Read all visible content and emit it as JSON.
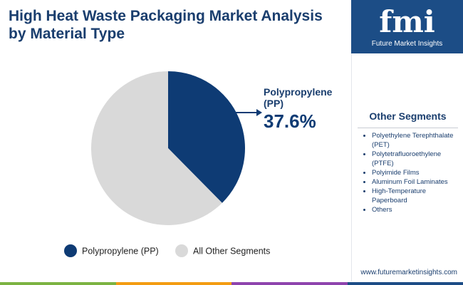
{
  "chart_data": {
    "type": "pie",
    "title": "High Heat Waste Packaging Market Analysis by Material Type",
    "categories": [
      "Polypropylene (PP)",
      "All Other Segments"
    ],
    "values": [
      37.6,
      62.4
    ],
    "value_labels": [
      "37.6%",
      null
    ],
    "colors": [
      "#0e3b74",
      "#d9d9d9"
    ]
  },
  "logo": {
    "mark": "fmi",
    "name": "Future Market Insights"
  },
  "sidebar": {
    "heading": "Other Segments",
    "items": [
      "Polyethylene Terephthalate (PET)",
      "Polytetrafluoroethylene (PTFE)",
      "Polyimide Films",
      "Aluminum Foil Laminates",
      "High-Temperature Paperboard",
      "Others"
    ]
  },
  "footer": {
    "url": "www.futuremarketinsights.com"
  }
}
